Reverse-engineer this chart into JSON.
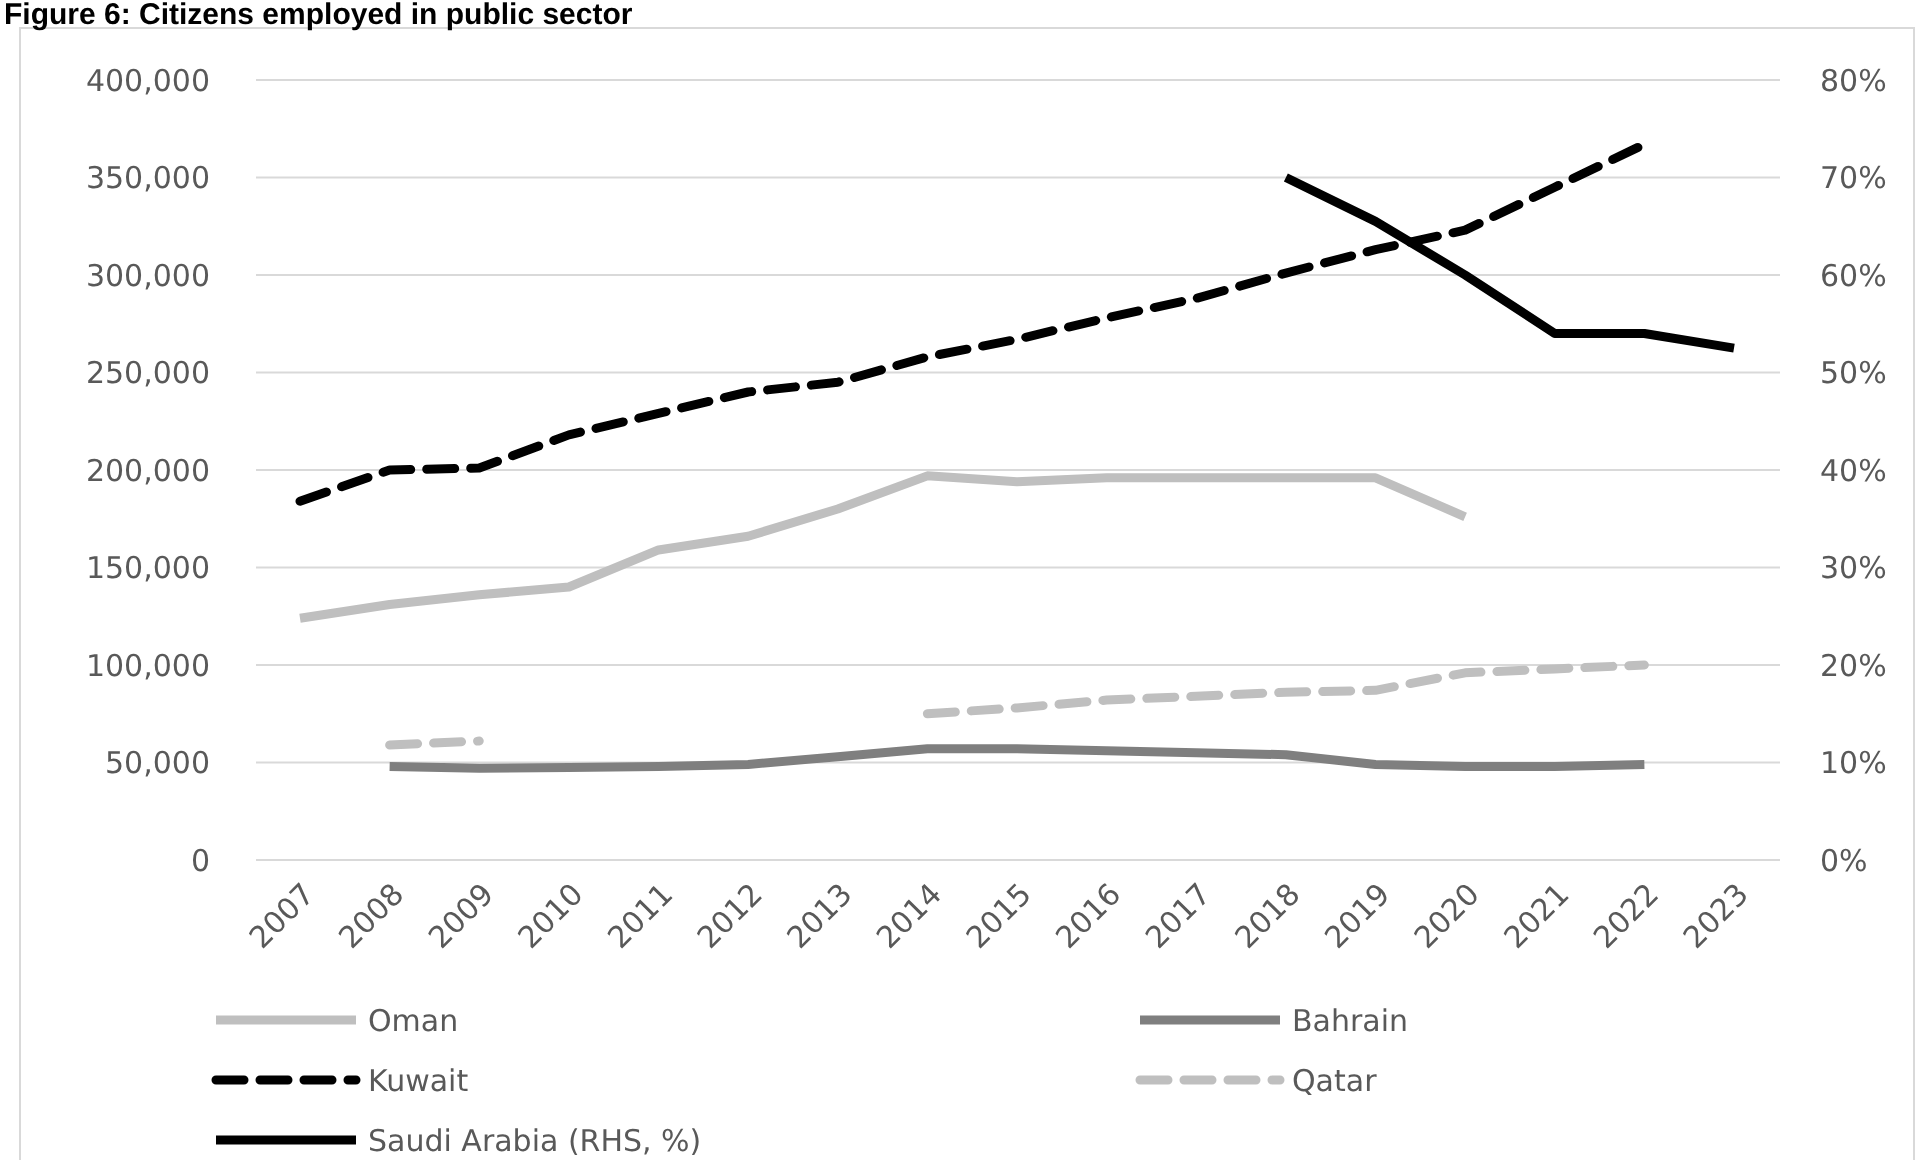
{
  "chart_data": {
    "type": "line",
    "title": "Figure 6: Citizens employed in public sector",
    "categories": [
      "2007",
      "2008",
      "2009",
      "2010",
      "2011",
      "2012",
      "2013",
      "2014",
      "2015",
      "2016",
      "2017",
      "2018",
      "2019",
      "2020",
      "2021",
      "2022",
      "2023"
    ],
    "series": [
      {
        "name": "Oman",
        "color": "#bfbfbf",
        "line_style": "solid",
        "values": [
          124000,
          131000,
          136000,
          140000,
          159000,
          166000,
          180000,
          197000,
          194000,
          196000,
          196000,
          196000,
          196000,
          176000,
          null,
          null,
          null
        ]
      },
      {
        "name": "Bahrain",
        "color": "#7f7f7f",
        "line_style": "solid",
        "values": [
          null,
          48000,
          47000,
          47500,
          48000,
          49000,
          53000,
          57000,
          57000,
          56000,
          55000,
          54000,
          49000,
          48000,
          48000,
          49000,
          null
        ]
      },
      {
        "name": "Kuwait",
        "color": "#000000",
        "line_style": "dashed",
        "values": [
          184000,
          200000,
          201000,
          218000,
          229000,
          240000,
          245000,
          258000,
          267000,
          278000,
          288000,
          301000,
          313000,
          323000,
          345000,
          367000,
          null
        ]
      },
      {
        "name": "Qatar",
        "color": "#bfbfbf",
        "line_style": "dashed",
        "values": [
          null,
          59000,
          61000,
          null,
          null,
          null,
          null,
          75000,
          78000,
          82000,
          84000,
          86000,
          87000,
          96000,
          98000,
          100000,
          null
        ]
      },
      {
        "name": "Saudi Arabia (RHS, %)",
        "color": "#000000",
        "line_style": "solid",
        "axis": "y2",
        "values": [
          null,
          null,
          null,
          null,
          null,
          null,
          null,
          null,
          null,
          null,
          null,
          70,
          65.5,
          60,
          54,
          54,
          52.5
        ]
      }
    ],
    "ylim": [
      0,
      400000
    ],
    "yticks": [
      {
        "value": 0,
        "label": "0"
      },
      {
        "value": 50000,
        "label": "50,000"
      },
      {
        "value": 100000,
        "label": "100,000"
      },
      {
        "value": 150000,
        "label": "150,000"
      },
      {
        "value": 200000,
        "label": "200,000"
      },
      {
        "value": 250000,
        "label": "250,000"
      },
      {
        "value": 300000,
        "label": "300,000"
      },
      {
        "value": 350000,
        "label": "350,000"
      },
      {
        "value": 400000,
        "label": "400,000"
      }
    ],
    "y2lim": [
      0,
      80
    ],
    "y2ticks": [
      {
        "value": 0,
        "label": "0%"
      },
      {
        "value": 10,
        "label": "10%"
      },
      {
        "value": 20,
        "label": "20%"
      },
      {
        "value": 30,
        "label": "30%"
      },
      {
        "value": 40,
        "label": "40%"
      },
      {
        "value": 50,
        "label": "50%"
      },
      {
        "value": 60,
        "label": "60%"
      },
      {
        "value": 70,
        "label": "70%"
      },
      {
        "value": 80,
        "label": "80%"
      }
    ],
    "grid": "y",
    "legend": "bottom"
  }
}
